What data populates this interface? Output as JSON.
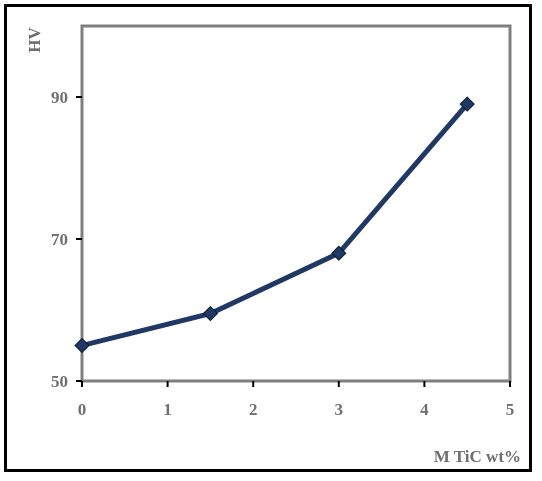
{
  "chart_data": {
    "type": "line",
    "title": "",
    "xlabel": "M TiC wt%",
    "ylabel": "HV",
    "xlim": [
      0,
      5
    ],
    "ylim": [
      50,
      100
    ],
    "x_ticks": [
      "0",
      "1",
      "2",
      "3",
      "4",
      "5"
    ],
    "y_ticks": [
      "50",
      "70",
      "90"
    ],
    "grid": false,
    "series": [
      {
        "x": [
          0,
          1.5,
          3,
          4.5
        ],
        "values": [
          55,
          59.5,
          68,
          89
        ],
        "color": "#1f3864"
      }
    ]
  }
}
